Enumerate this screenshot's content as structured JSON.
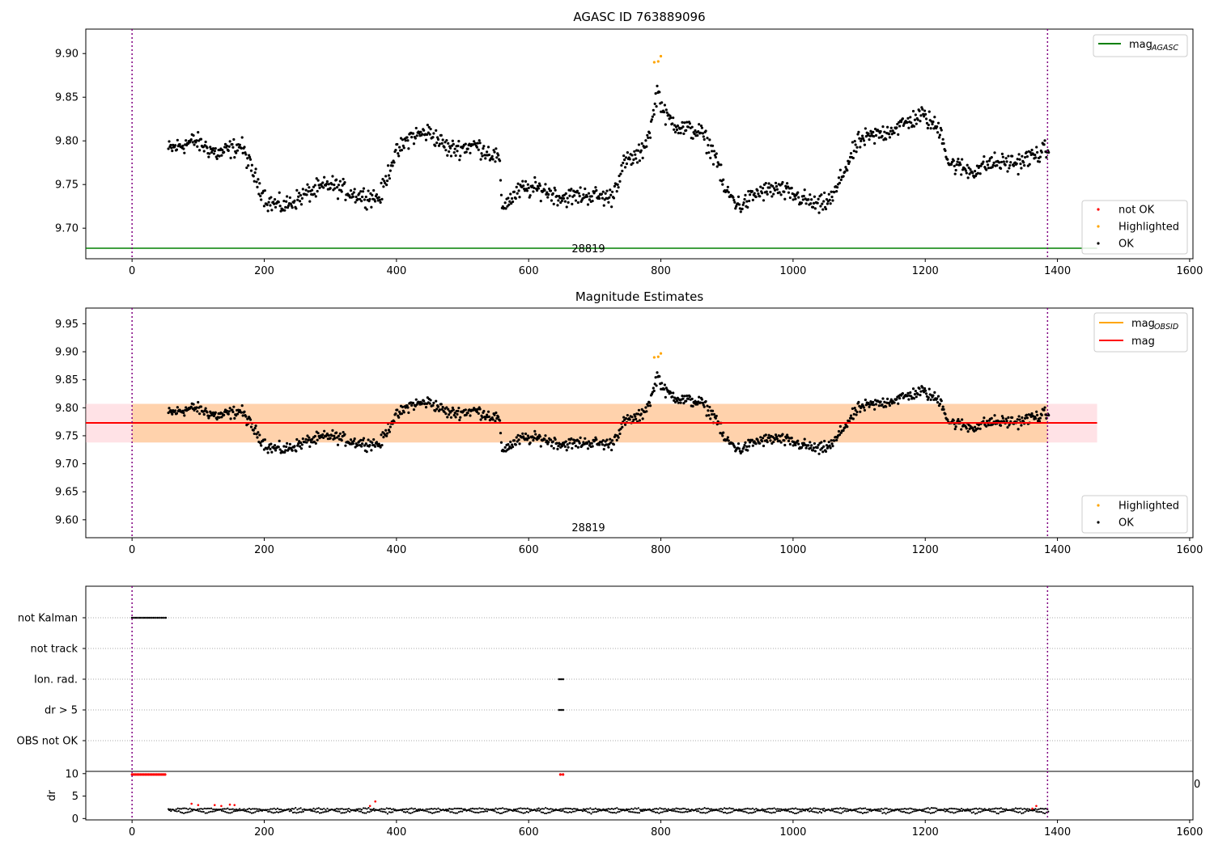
{
  "figure": {
    "panel1_title": "AGASC ID 763889096",
    "panel2_title": "Magnitude Estimates",
    "obsid_label": "28819",
    "stray_tick_label": "0"
  },
  "chart_data": [
    {
      "type": "scatter",
      "title": "AGASC ID 763889096",
      "xlim": [
        -70,
        1605
      ],
      "ylim": [
        9.665,
        9.928
      ],
      "xticks": [
        "0",
        "200",
        "400",
        "600",
        "800",
        "1000",
        "1200",
        "1400",
        "1600"
      ],
      "yticks": [
        "9.70",
        "9.75",
        "9.80",
        "9.85",
        "9.90"
      ],
      "vlines": [
        0,
        1385
      ],
      "hline": {
        "name": "mag_AGASC",
        "value": 9.677,
        "x_range": [
          -70,
          1460
        ],
        "color": "#008000"
      },
      "legend_lines": [
        {
          "label": "mag",
          "subscript": "AGASC",
          "color": "#008000"
        }
      ],
      "legend_points": [
        {
          "label": "not OK",
          "color": "#ff0000"
        },
        {
          "label": "Highlighted",
          "color": "#ffa500"
        },
        {
          "label": "OK",
          "color": "#000000"
        }
      ],
      "series_shape": [
        [
          55,
          9.79
        ],
        [
          95,
          9.8
        ],
        [
          130,
          9.785
        ],
        [
          165,
          9.795
        ],
        [
          185,
          9.76
        ],
        [
          205,
          9.73
        ],
        [
          230,
          9.725
        ],
        [
          265,
          9.74
        ],
        [
          300,
          9.75
        ],
        [
          340,
          9.738
        ],
        [
          375,
          9.735
        ],
        [
          395,
          9.78
        ],
        [
          420,
          9.805
        ],
        [
          450,
          9.81
        ],
        [
          480,
          9.79
        ],
        [
          520,
          9.795
        ],
        [
          555,
          9.78
        ],
        [
          560,
          9.725
        ],
        [
          590,
          9.745
        ],
        [
          620,
          9.745
        ],
        [
          650,
          9.735
        ],
        [
          690,
          9.738
        ],
        [
          725,
          9.735
        ],
        [
          745,
          9.775
        ],
        [
          770,
          9.785
        ],
        [
          785,
          9.815
        ],
        [
          795,
          9.86
        ],
        [
          805,
          9.83
        ],
        [
          830,
          9.815
        ],
        [
          860,
          9.81
        ],
        [
          885,
          9.78
        ],
        [
          895,
          9.745
        ],
        [
          920,
          9.725
        ],
        [
          945,
          9.74
        ],
        [
          975,
          9.745
        ],
        [
          1010,
          9.735
        ],
        [
          1040,
          9.725
        ],
        [
          1060,
          9.735
        ],
        [
          1080,
          9.77
        ],
        [
          1100,
          9.8
        ],
        [
          1140,
          9.81
        ],
        [
          1170,
          9.82
        ],
        [
          1195,
          9.83
        ],
        [
          1225,
          9.81
        ],
        [
          1235,
          9.775
        ],
        [
          1270,
          9.765
        ],
        [
          1300,
          9.775
        ],
        [
          1340,
          9.775
        ],
        [
          1385,
          9.79
        ]
      ],
      "highlighted": [
        [
          790,
          9.89
        ],
        [
          796,
          9.891
        ],
        [
          800,
          9.897
        ]
      ]
    },
    {
      "type": "scatter",
      "title": "Magnitude Estimates",
      "xlim": [
        -70,
        1605
      ],
      "ylim": [
        9.568,
        9.978
      ],
      "xticks": [
        "0",
        "200",
        "400",
        "600",
        "800",
        "1000",
        "1200",
        "1400",
        "1600"
      ],
      "yticks": [
        "9.60",
        "9.65",
        "9.70",
        "9.75",
        "9.80",
        "9.85",
        "9.90",
        "9.95"
      ],
      "vlines": [
        0,
        1385
      ],
      "mag": {
        "value": 9.773,
        "band": [
          9.738,
          9.807
        ],
        "x_range": [
          -70,
          1460
        ],
        "color": "#ff0000"
      },
      "mag_obsid": {
        "value": 9.773,
        "band": [
          9.738,
          9.807
        ],
        "x_range": [
          0,
          1385
        ],
        "color": "#ffa500"
      },
      "legend_lines": [
        {
          "label": "mag",
          "subscript": "OBSID",
          "color": "#ffa500"
        },
        {
          "label": "mag",
          "subscript": "",
          "color": "#ff0000"
        }
      ],
      "legend_points": [
        {
          "label": "Highlighted",
          "color": "#ffa500"
        },
        {
          "label": "OK",
          "color": "#000000"
        }
      ]
    },
    {
      "type": "scatter",
      "title": "",
      "categories": [
        "not Kalman",
        "not track",
        "Ion. rad.",
        "dr > 5",
        "OBS not OK"
      ],
      "flag_spans": [
        {
          "category": "not Kalman",
          "x": [
            0,
            52
          ]
        },
        {
          "category": "Ion. rad.",
          "x": [
            646,
            652
          ]
        },
        {
          "category": "dr > 5",
          "x": [
            646,
            652
          ]
        }
      ],
      "vlines": [
        0,
        1385
      ]
    },
    {
      "type": "scatter",
      "title": "",
      "ylabel": "dr",
      "xlim": [
        -70,
        1605
      ],
      "ylim": [
        -0.3,
        10.5
      ],
      "xticks": [
        "0",
        "200",
        "400",
        "600",
        "800",
        "1000",
        "1200",
        "1400",
        "1600"
      ],
      "yticks": [
        "0",
        "5",
        "10"
      ],
      "vlines": [
        0,
        1385
      ],
      "red_points": [
        [
          0,
          9.8
        ],
        [
          10,
          9.8
        ],
        [
          20,
          9.8
        ],
        [
          30,
          9.8
        ],
        [
          40,
          9.8
        ],
        [
          50,
          9.8
        ],
        [
          648,
          9.8
        ],
        [
          652,
          9.8
        ]
      ],
      "red_segments": [
        [
          90,
          3.3
        ],
        [
          100,
          3.0
        ],
        [
          125,
          3.0
        ],
        [
          135,
          2.8
        ],
        [
          148,
          3.1
        ],
        [
          155,
          3.0
        ],
        [
          360,
          2.8
        ],
        [
          368,
          3.8
        ],
        [
          1362,
          2.2
        ],
        [
          1368,
          2.8
        ]
      ],
      "dr_baseline": 1.2
    }
  ]
}
